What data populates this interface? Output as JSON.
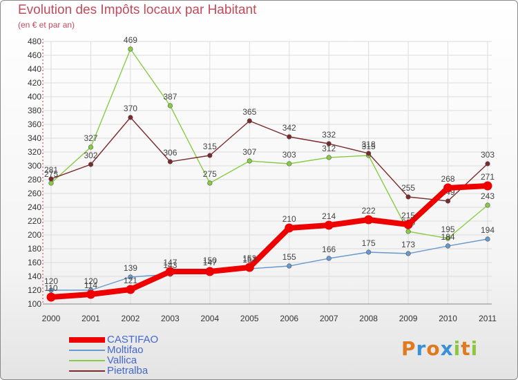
{
  "header": {
    "title": "Evolution des Impôts locaux par Habitant",
    "subtitle": "(en € et par an)"
  },
  "logo": {
    "letters": [
      "P",
      "r",
      "o",
      "x",
      "i",
      "t",
      "i"
    ],
    "text": "Proxiti"
  },
  "colors": {
    "title": "#c44a5a",
    "axis_text": "#333333",
    "grid": "#dcdcdc",
    "legend_text": "#4466cc"
  },
  "chart_data": {
    "type": "line",
    "title": "Evolution des Impôts locaux par Habitant",
    "subtitle": "(en € et par an)",
    "xlabel": "",
    "ylabel": "",
    "x": [
      "2000",
      "2001",
      "2002",
      "2003",
      "2004",
      "2005",
      "2006",
      "2007",
      "2008",
      "2009",
      "2010",
      "2011"
    ],
    "ylim": [
      100,
      480
    ],
    "yticks": [
      100,
      120,
      140,
      160,
      180,
      200,
      220,
      240,
      260,
      280,
      300,
      320,
      340,
      360,
      380,
      400,
      420,
      440,
      460,
      480
    ],
    "grid": true,
    "legend_position": "bottom-left",
    "series": [
      {
        "name": "CASTIFAO",
        "color": "#ee0000",
        "values": [
          110,
          114,
          121,
          147,
          147,
          153,
          210,
          214,
          222,
          215,
          268,
          271
        ],
        "emphasis": true
      },
      {
        "name": "Moltifao",
        "color": "#6699cc",
        "values": [
          120,
          120,
          139,
          143,
          150,
          151,
          155,
          166,
          175,
          173,
          184,
          194
        ]
      },
      {
        "name": "Vallica",
        "color": "#88cc44",
        "values": [
          275,
          327,
          469,
          387,
          275,
          307,
          303,
          312,
          315,
          205,
          195,
          243
        ]
      },
      {
        "name": "Pietralba",
        "color": "#7a2a2a",
        "values": [
          281,
          302,
          370,
          306,
          315,
          365,
          342,
          332,
          318,
          255,
          249,
          303
        ]
      }
    ]
  }
}
